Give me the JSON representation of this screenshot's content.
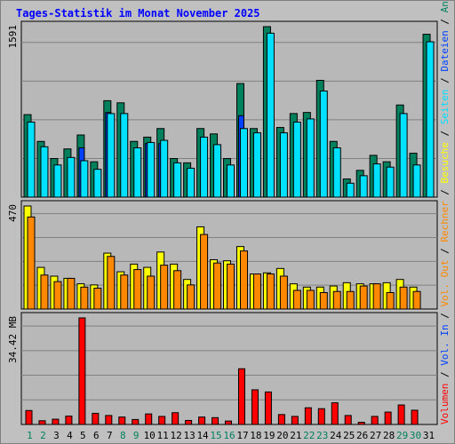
{
  "title": "Tages-Statistik im Monat November 2025",
  "colors": {
    "background": "#c0c0c0",
    "plot": "#b8b8b8",
    "hits": "#00805c",
    "files": "#00e0ff",
    "pages": "#00e0ff",
    "pages_inner": "#0040ff",
    "visits": "#ffff00",
    "sites": "#ff8800",
    "volume": "#ff0000",
    "weekend": "#00805c",
    "weekday": "#000000",
    "title": "#0000ff"
  },
  "panels": {
    "top": {
      "max_label": "1591"
    },
    "middle": {
      "max_label": "470"
    },
    "bottom": {
      "max_label": "34.42 MB"
    }
  },
  "legend_right": {
    "sep": " / ",
    "hits": "Anfragen",
    "files": "Dateien",
    "pages": "Seiten",
    "visits": "Besuche",
    "sites": "Rechner",
    "vol_out": "Vol. Out",
    "vol_in": "Vol. In",
    "volume": "Volumen"
  },
  "chart_data": {
    "type": "bar",
    "categories": [
      "1",
      "2",
      "3",
      "4",
      "5",
      "6",
      "7",
      "8",
      "9",
      "10",
      "11",
      "12",
      "13",
      "14",
      "15",
      "16",
      "17",
      "18",
      "19",
      "20",
      "21",
      "22",
      "23",
      "24",
      "25",
      "26",
      "27",
      "28",
      "29",
      "30",
      "31"
    ],
    "weekend_days": [
      1,
      2,
      8,
      9,
      15,
      16,
      22,
      23,
      29,
      30
    ],
    "series": [
      {
        "name": "Anfragen",
        "panel": "top",
        "values": [
          770,
          520,
          360,
          450,
          580,
          330,
          900,
          880,
          520,
          560,
          640,
          360,
          320,
          640,
          590,
          360,
          1060,
          640,
          1591,
          650,
          780,
          790,
          1090,
          520,
          170,
          250,
          390,
          330,
          860,
          410,
          1520
        ]
      },
      {
        "name": "Dateien",
        "panel": "top",
        "values": [
          700,
          470,
          300,
          370,
          340,
          260,
          780,
          780,
          460,
          510,
          530,
          320,
          270,
          560,
          490,
          300,
          640,
          600,
          1530,
          600,
          700,
          730,
          990,
          460,
          130,
          200,
          310,
          280,
          780,
          300,
          1450
        ]
      },
      {
        "name": "Seiten",
        "panel": "top",
        "values": [
          0,
          0,
          0,
          0,
          460,
          0,
          790,
          0,
          0,
          500,
          500,
          0,
          0,
          0,
          0,
          0,
          760,
          0,
          0,
          0,
          0,
          0,
          0,
          0,
          0,
          0,
          0,
          0,
          0,
          0,
          0
        ]
      },
      {
        "name": "Besuche",
        "panel": "middle",
        "values": [
          470,
          190,
          150,
          140,
          115,
          110,
          255,
          170,
          205,
          190,
          260,
          205,
          135,
          375,
          225,
          220,
          285,
          160,
          165,
          185,
          115,
          100,
          100,
          105,
          120,
          115,
          115,
          120,
          135,
          100,
          0
        ]
      },
      {
        "name": "Rechner",
        "panel": "middle",
        "values": [
          420,
          155,
          125,
          140,
          100,
          95,
          240,
          155,
          180,
          150,
          200,
          175,
          110,
          340,
          210,
          205,
          265,
          160,
          160,
          150,
          85,
          85,
          75,
          80,
          80,
          105,
          115,
          75,
          100,
          80,
          0
        ]
      },
      {
        "name": "Volumen",
        "panel": "bottom",
        "values": [
          4.5,
          1.2,
          1.7,
          2.7,
          34.42,
          3.6,
          2.9,
          2.4,
          1.6,
          3.4,
          2.6,
          3.8,
          1.3,
          2.4,
          2.2,
          1.1,
          18.0,
          11.2,
          10.5,
          3.2,
          2.6,
          5.4,
          5.1,
          7.0,
          2.9,
          0.7,
          2.6,
          4.0,
          6.3,
          4.6,
          0
        ]
      }
    ]
  }
}
